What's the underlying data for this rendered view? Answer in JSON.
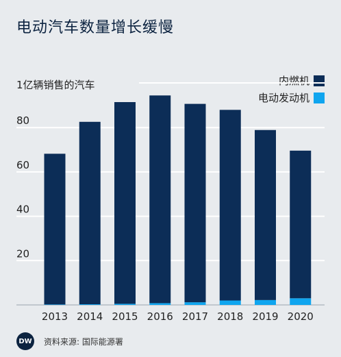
{
  "title": "电动汽车数量增长缓慢",
  "chart_data": {
    "type": "bar",
    "stacked": true,
    "ylabel": "1亿辆销售的汽车",
    "categories": [
      "2013",
      "2014",
      "2015",
      "2016",
      "2017",
      "2018",
      "2019",
      "2020"
    ],
    "series": [
      {
        "name": "电动发动机",
        "color": "#0fa5ef",
        "values": [
          0.2,
          0.3,
          0.5,
          0.8,
          1.2,
          2.0,
          2.2,
          3.0
        ]
      },
      {
        "name": "内燃机",
        "color": "#0c2d57",
        "values": [
          68.0,
          82.3,
          91.0,
          93.7,
          89.5,
          86.0,
          76.7,
          66.6
        ]
      }
    ],
    "yticks": [
      20,
      40,
      60,
      80
    ],
    "ylim": [
      0,
      100
    ],
    "grid": true,
    "legend": "top-right"
  },
  "logo": {
    "text": "DW"
  },
  "source": "资料来源: 国际能源署"
}
